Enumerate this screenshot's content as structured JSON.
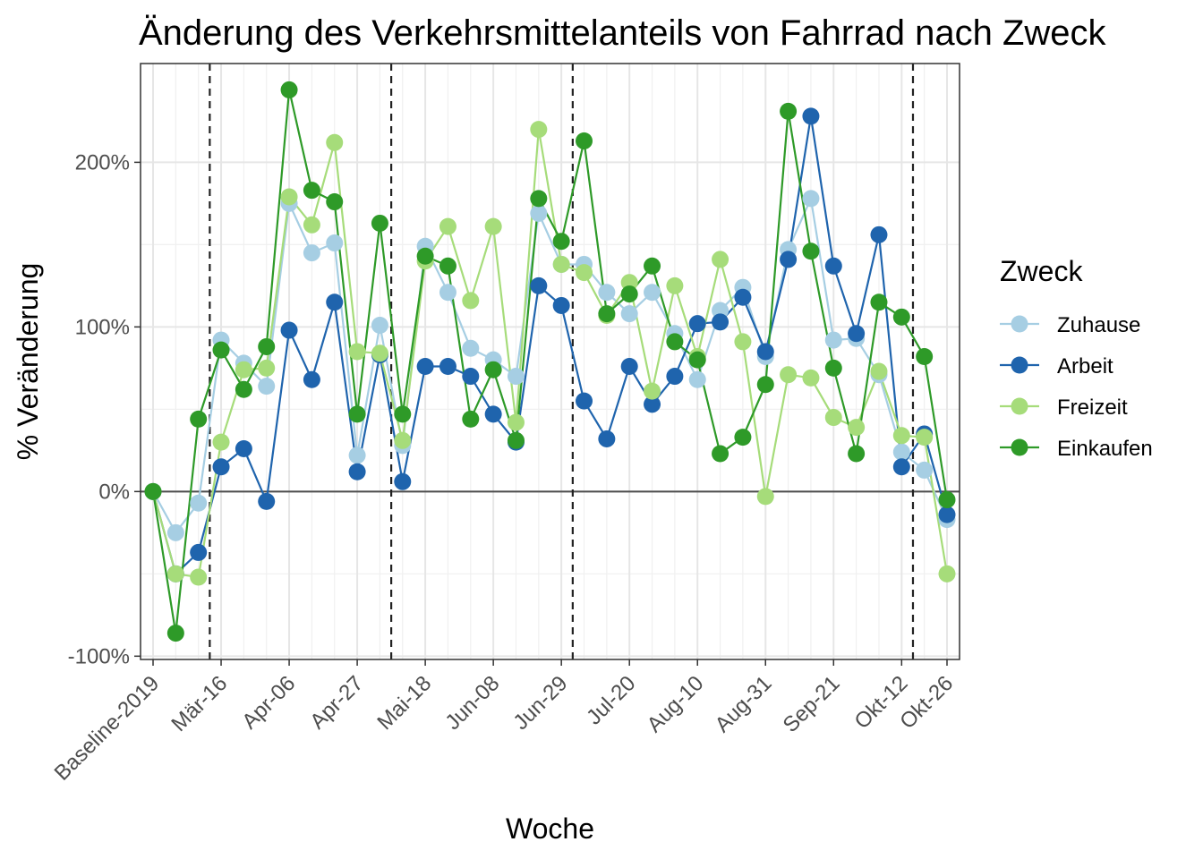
{
  "chart_data": {
    "type": "line",
    "title": "Änderung des Verkehrsmittelanteils von Fahrrad nach Zweck",
    "xlabel": "Woche",
    "ylabel": "% Veränderung",
    "x_tick_labels": [
      "Baseline-2019",
      "Mär-16",
      "Apr-06",
      "Apr-27",
      "Mai-18",
      "Jun-08",
      "Jun-29",
      "Jul-20",
      "Aug-10",
      "Aug-31",
      "Sep-21",
      "Okt-12",
      "Okt-26"
    ],
    "x_tick_positions": [
      0,
      3,
      6,
      9,
      12,
      15,
      18,
      21,
      24,
      27,
      30,
      33,
      35
    ],
    "n_points": 36,
    "y_ticks": [
      -100,
      0,
      100,
      200
    ],
    "y_tick_labels": [
      "-100%",
      "0%",
      "100%",
      "200%"
    ],
    "ylim": [
      -102,
      260
    ],
    "reference_lines": [
      {
        "type": "horizontal",
        "value": 0,
        "style": "solid"
      },
      {
        "type": "vertical",
        "x": 2.5,
        "style": "dashed"
      },
      {
        "type": "vertical",
        "x": 10.5,
        "style": "dashed"
      },
      {
        "type": "vertical",
        "x": 18.5,
        "style": "dashed"
      },
      {
        "type": "vertical",
        "x": 33.5,
        "style": "dashed"
      }
    ],
    "grid": true,
    "legend_position": "right",
    "legend_title": "Zweck",
    "series": [
      {
        "name": "Zuhause",
        "color": "#a6cee3",
        "values": [
          0,
          -25,
          -7,
          92,
          78,
          64,
          175,
          145,
          151,
          22,
          101,
          28,
          149,
          121,
          87,
          80,
          70,
          169,
          138,
          138,
          121,
          108,
          121,
          96,
          68,
          110,
          124,
          82,
          147,
          178,
          92,
          93,
          71,
          24,
          13,
          -17
        ]
      },
      {
        "name": "Arbeit",
        "color": "#1f64ad",
        "values": [
          0,
          -50,
          -37,
          15,
          26,
          -6,
          98,
          68,
          115,
          12,
          83,
          6,
          76,
          76,
          70,
          47,
          30,
          125,
          113,
          55,
          32,
          76,
          53,
          70,
          102,
          103,
          118,
          85,
          141,
          228,
          137,
          96,
          156,
          15,
          35,
          -14
        ]
      },
      {
        "name": "Freizeit",
        "color": "#a6dc7a",
        "values": [
          0,
          -50,
          -52,
          30,
          74,
          75,
          179,
          162,
          212,
          85,
          84,
          31,
          140,
          161,
          116,
          161,
          42,
          220,
          138,
          133,
          107,
          127,
          61,
          125,
          82,
          141,
          91,
          -3,
          71,
          69,
          45,
          39,
          73,
          34,
          33,
          -50
        ]
      },
      {
        "name": "Einkaufen",
        "color": "#2e9a28",
        "values": [
          0,
          -86,
          44,
          86,
          62,
          88,
          244,
          183,
          176,
          47,
          163,
          47,
          143,
          137,
          44,
          74,
          31,
          178,
          152,
          213,
          108,
          120,
          137,
          91,
          80,
          23,
          33,
          65,
          231,
          146,
          75,
          23,
          115,
          106,
          82,
          -5
        ]
      }
    ]
  }
}
